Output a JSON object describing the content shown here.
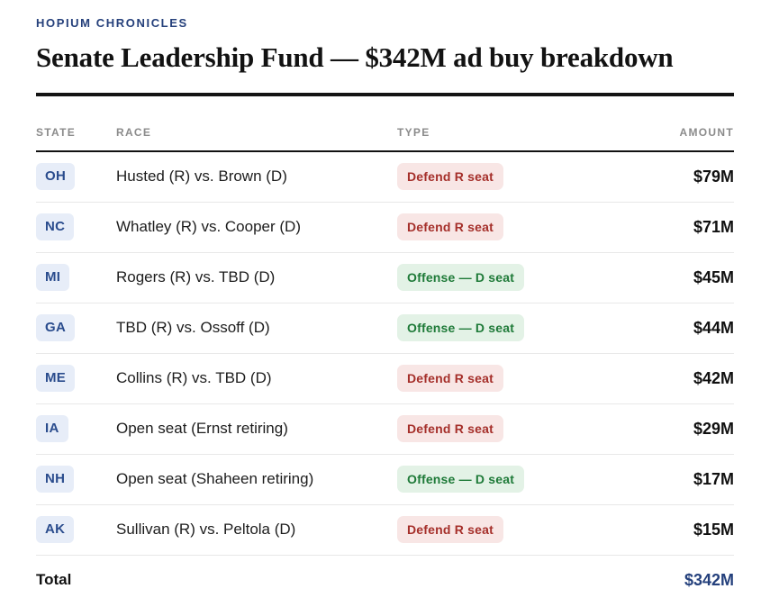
{
  "header": {
    "kicker": "HOPIUM CHRONICLES",
    "title": "Senate Leadership Fund — $342M ad buy breakdown"
  },
  "table": {
    "columns": [
      "STATE",
      "RACE",
      "TYPE",
      "AMOUNT"
    ],
    "rows": [
      {
        "state": "OH",
        "race": "Husted (R) vs. Brown (D)",
        "type": "Defend R seat",
        "type_kind": "defend",
        "amount": "$79M"
      },
      {
        "state": "NC",
        "race": "Whatley (R) vs. Cooper (D)",
        "type": "Defend R seat",
        "type_kind": "defend",
        "amount": "$71M"
      },
      {
        "state": "MI",
        "race": "Rogers (R) vs. TBD (D)",
        "type": "Offense — D seat",
        "type_kind": "offense",
        "amount": "$45M"
      },
      {
        "state": "GA",
        "race": "TBD (R) vs. Ossoff (D)",
        "type": "Offense — D seat",
        "type_kind": "offense",
        "amount": "$44M"
      },
      {
        "state": "ME",
        "race": "Collins (R) vs. TBD (D)",
        "type": "Defend R seat",
        "type_kind": "defend",
        "amount": "$42M"
      },
      {
        "state": "IA",
        "race": "Open seat (Ernst retiring)",
        "type": "Defend R seat",
        "type_kind": "defend",
        "amount": "$29M"
      },
      {
        "state": "NH",
        "race": "Open seat (Shaheen retiring)",
        "type": "Offense — D seat",
        "type_kind": "offense",
        "amount": "$17M"
      },
      {
        "state": "AK",
        "race": "Sullivan (R) vs. Peltola (D)",
        "type": "Defend R seat",
        "type_kind": "defend",
        "amount": "$15M"
      }
    ],
    "total": {
      "label": "Total",
      "amount": "$342M"
    }
  },
  "colors": {
    "kicker-navy": "#25407b",
    "title-ink": "#121212",
    "header-gray": "#8b8b8b",
    "rule-ink": "#141414",
    "divider": "#e8e8e8",
    "state-badge-bg": "#e7edf8",
    "state-badge-text": "#2a4c8d",
    "defend-bg": "#f8e6e5",
    "defend-text": "#a52f2a",
    "offense-bg": "#e3f2e6",
    "offense-text": "#1e7a38",
    "total-navy": "#24407c"
  }
}
